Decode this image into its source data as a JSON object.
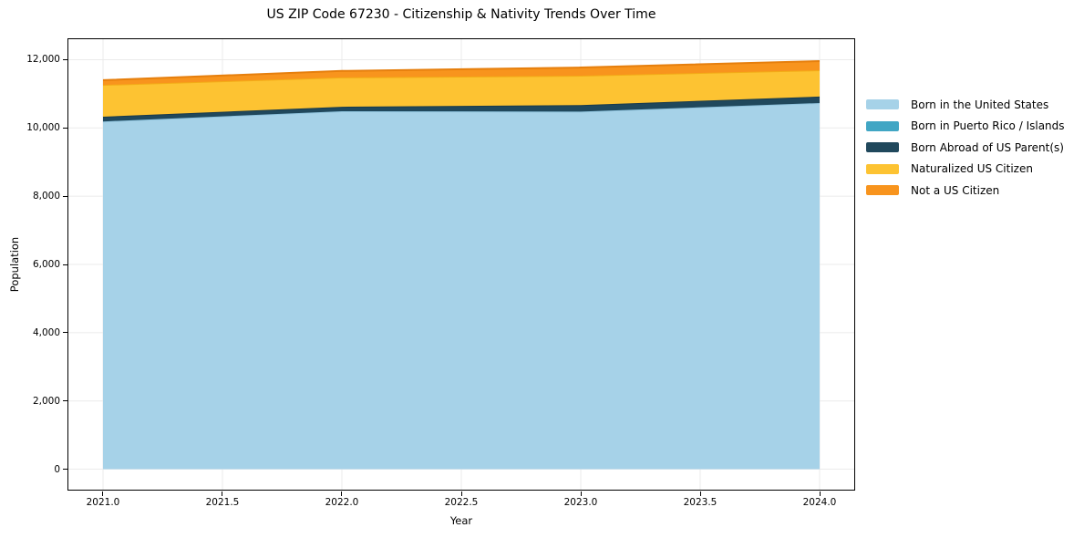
{
  "title": "US ZIP Code 67230 - Citizenship & Nativity Trends Over Time",
  "axes": {
    "xlabel": "Year",
    "ylabel": "Population",
    "xtick_labels": [
      "2021.0",
      "2021.5",
      "2022.0",
      "2022.5",
      "2023.0",
      "2023.5",
      "2024.0"
    ],
    "ytick_labels": [
      "0",
      "2,000",
      "4,000",
      "6,000",
      "8,000",
      "10,000",
      "12,000"
    ]
  },
  "style": {
    "background": "#ffffff",
    "grid_color": "#ebebeb",
    "spine_color": "#000000",
    "text_color": "#000000"
  },
  "chart_data": {
    "type": "area",
    "stacked": true,
    "title": "US ZIP Code 67230 - Citizenship & Nativity Trends Over Time",
    "xlabel": "Year",
    "ylabel": "Population",
    "x": [
      2021,
      2022,
      2023,
      2024
    ],
    "xticks": [
      2021.0,
      2021.5,
      2022.0,
      2022.5,
      2023.0,
      2023.5,
      2024.0
    ],
    "yticks": [
      0,
      2000,
      4000,
      6000,
      8000,
      10000,
      12000
    ],
    "xlim": [
      2020.855,
      2024.145
    ],
    "ylim": [
      -600,
      12600
    ],
    "grid": true,
    "legend_position": "right-outside",
    "series": [
      {
        "name": "Born in the United States",
        "slug": "born-in-the-united-states",
        "color": "#a6d2e8",
        "edge": "#8fc3dd",
        "values": [
          10190,
          10490,
          10480,
          10730
        ]
      },
      {
        "name": "Born in Puerto Rico / Islands",
        "slug": "born-in-puerto-rico-islands",
        "color": "#41a6c4",
        "edge": "#3694b1",
        "values": [
          0,
          0,
          0,
          0
        ]
      },
      {
        "name": "Born Abroad of US Parent(s)",
        "slug": "born-abroad-of-us-parents",
        "color": "#20485c",
        "edge": "#1a3b4c",
        "values": [
          140,
          130,
          190,
          190
        ]
      },
      {
        "name": "Naturalized US Citizen",
        "slug": "naturalized-us-citizen",
        "color": "#fdc332",
        "edge": "#f3ac17",
        "values": [
          930,
          860,
          860,
          770
        ]
      },
      {
        "name": "Not a US Citizen",
        "slug": "not-a-us-citizen",
        "color": "#f8941d",
        "edge": "#e67f0d",
        "values": [
          140,
          190,
          240,
          270
        ]
      }
    ],
    "totals": [
      11400,
      11670,
      11770,
      11960
    ]
  }
}
